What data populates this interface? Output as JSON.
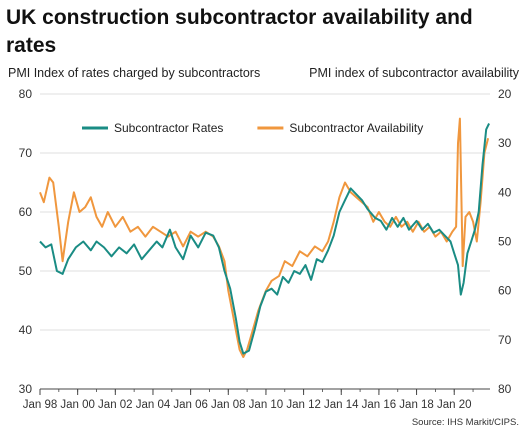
{
  "chart_data": {
    "type": "line",
    "title": "UK construction subcontractor availability and rates",
    "ylabel": "PMI Index of rates charged by subcontractors",
    "ylabel_right": "PMI index of subcontractor availability",
    "source": "Source: IHS Markit/CIPS.",
    "ylim": [
      30,
      80
    ],
    "yticks": [
      30,
      40,
      50,
      60,
      70,
      80
    ],
    "y2lim_inverted": [
      20,
      80
    ],
    "y2ticks": [
      20,
      30,
      40,
      50,
      60,
      70,
      80
    ],
    "xlim": [
      1998.0,
      2021.9
    ],
    "xticks": [
      {
        "x": 1998,
        "label": "Jan 98"
      },
      {
        "x": 2000,
        "label": "Jan 00"
      },
      {
        "x": 2002,
        "label": "Jan 02"
      },
      {
        "x": 2004,
        "label": "Jan 04"
      },
      {
        "x": 2006,
        "label": "Jan 06"
      },
      {
        "x": 2008,
        "label": "Jan 08"
      },
      {
        "x": 2010,
        "label": "Jan 10"
      },
      {
        "x": 2012,
        "label": "Jan 12"
      },
      {
        "x": 2014,
        "label": "Jan 14"
      },
      {
        "x": 2016,
        "label": "Jan 16"
      },
      {
        "x": 2018,
        "label": "Jan 18"
      },
      {
        "x": 2020,
        "label": "Jan 20"
      }
    ],
    "grid": "horizontal",
    "legend_position": "top",
    "series": [
      {
        "name": "Subcontractor Rates",
        "axis": "left",
        "color": "#1a8c84",
        "points": [
          [
            1998.0,
            55
          ],
          [
            1998.3,
            54
          ],
          [
            1998.6,
            54.5
          ],
          [
            1998.9,
            50
          ],
          [
            1999.2,
            49.5
          ],
          [
            1999.5,
            52
          ],
          [
            1999.9,
            54
          ],
          [
            2000.3,
            55
          ],
          [
            2000.7,
            53.5
          ],
          [
            2001.0,
            55
          ],
          [
            2001.4,
            54
          ],
          [
            2001.8,
            52.5
          ],
          [
            2002.2,
            54
          ],
          [
            2002.6,
            53
          ],
          [
            2003.0,
            54.5
          ],
          [
            2003.4,
            52
          ],
          [
            2003.8,
            53.5
          ],
          [
            2004.2,
            55
          ],
          [
            2004.5,
            54
          ],
          [
            2004.9,
            57
          ],
          [
            2005.2,
            54
          ],
          [
            2005.6,
            52
          ],
          [
            2006.0,
            56
          ],
          [
            2006.4,
            54
          ],
          [
            2006.8,
            56.5
          ],
          [
            2007.2,
            56
          ],
          [
            2007.5,
            54
          ],
          [
            2007.8,
            50
          ],
          [
            2008.1,
            47
          ],
          [
            2008.4,
            42
          ],
          [
            2008.6,
            38
          ],
          [
            2008.8,
            36
          ],
          [
            2009.1,
            36.5
          ],
          [
            2009.4,
            40
          ],
          [
            2009.7,
            44
          ],
          [
            2010.0,
            46.5
          ],
          [
            2010.3,
            47
          ],
          [
            2010.6,
            46
          ],
          [
            2010.9,
            49
          ],
          [
            2011.2,
            48
          ],
          [
            2011.5,
            50
          ],
          [
            2011.8,
            49.5
          ],
          [
            2012.1,
            51
          ],
          [
            2012.4,
            48.5
          ],
          [
            2012.7,
            52
          ],
          [
            2013.0,
            51.5
          ],
          [
            2013.3,
            53.5
          ],
          [
            2013.6,
            56
          ],
          [
            2013.9,
            60
          ],
          [
            2014.2,
            62
          ],
          [
            2014.5,
            64
          ],
          [
            2014.8,
            63
          ],
          [
            2015.1,
            62
          ],
          [
            2015.4,
            60.5
          ],
          [
            2015.8,
            59
          ],
          [
            2016.1,
            58.5
          ],
          [
            2016.4,
            57
          ],
          [
            2016.7,
            59
          ],
          [
            2017.0,
            57.5
          ],
          [
            2017.3,
            59
          ],
          [
            2017.6,
            57
          ],
          [
            2018.0,
            58.5
          ],
          [
            2018.3,
            57
          ],
          [
            2018.6,
            58
          ],
          [
            2018.9,
            56.5
          ],
          [
            2019.2,
            57
          ],
          [
            2019.5,
            56
          ],
          [
            2019.8,
            55
          ],
          [
            2020.0,
            53
          ],
          [
            2020.2,
            51
          ],
          [
            2020.35,
            46
          ],
          [
            2020.5,
            48
          ],
          [
            2020.7,
            53
          ],
          [
            2020.9,
            55
          ],
          [
            2021.1,
            57
          ],
          [
            2021.3,
            60
          ],
          [
            2021.5,
            68
          ],
          [
            2021.7,
            74
          ],
          [
            2021.85,
            75
          ]
        ]
      },
      {
        "name": "Subcontractor Availability",
        "axis": "right",
        "color": "#f0973e",
        "points": [
          [
            1998.0,
            40
          ],
          [
            1998.2,
            42
          ],
          [
            1998.5,
            37
          ],
          [
            1998.7,
            38
          ],
          [
            1999.0,
            47
          ],
          [
            1999.2,
            54
          ],
          [
            1999.5,
            46
          ],
          [
            1999.8,
            40
          ],
          [
            2000.1,
            44
          ],
          [
            2000.4,
            43
          ],
          [
            2000.7,
            41
          ],
          [
            2001.0,
            45
          ],
          [
            2001.3,
            47
          ],
          [
            2001.6,
            44
          ],
          [
            2002.0,
            47
          ],
          [
            2002.4,
            45
          ],
          [
            2002.8,
            48
          ],
          [
            2003.2,
            47
          ],
          [
            2003.6,
            49
          ],
          [
            2004.0,
            47
          ],
          [
            2004.4,
            48
          ],
          [
            2004.8,
            49
          ],
          [
            2005.2,
            48
          ],
          [
            2005.6,
            51
          ],
          [
            2006.0,
            48
          ],
          [
            2006.4,
            49
          ],
          [
            2006.8,
            48
          ],
          [
            2007.2,
            49
          ],
          [
            2007.5,
            51
          ],
          [
            2007.8,
            54
          ],
          [
            2008.0,
            60
          ],
          [
            2008.2,
            64
          ],
          [
            2008.4,
            68
          ],
          [
            2008.6,
            72
          ],
          [
            2008.8,
            73.5
          ],
          [
            2009.0,
            72
          ],
          [
            2009.3,
            68
          ],
          [
            2009.6,
            64
          ],
          [
            2010.0,
            60
          ],
          [
            2010.3,
            58
          ],
          [
            2010.7,
            57
          ],
          [
            2011.0,
            54
          ],
          [
            2011.4,
            55
          ],
          [
            2011.8,
            52
          ],
          [
            2012.2,
            53
          ],
          [
            2012.6,
            51
          ],
          [
            2013.0,
            52
          ],
          [
            2013.3,
            50
          ],
          [
            2013.6,
            46
          ],
          [
            2013.9,
            41
          ],
          [
            2014.2,
            38
          ],
          [
            2014.5,
            40
          ],
          [
            2014.8,
            41
          ],
          [
            2015.1,
            42
          ],
          [
            2015.4,
            43
          ],
          [
            2015.7,
            46
          ],
          [
            2016.0,
            44
          ],
          [
            2016.3,
            46
          ],
          [
            2016.6,
            47
          ],
          [
            2016.9,
            45
          ],
          [
            2017.2,
            47
          ],
          [
            2017.5,
            46
          ],
          [
            2017.8,
            48
          ],
          [
            2018.1,
            46
          ],
          [
            2018.4,
            48
          ],
          [
            2018.7,
            47
          ],
          [
            2019.0,
            49
          ],
          [
            2019.3,
            48
          ],
          [
            2019.6,
            50
          ],
          [
            2019.9,
            48
          ],
          [
            2020.1,
            47
          ],
          [
            2020.2,
            30
          ],
          [
            2020.3,
            25
          ],
          [
            2020.45,
            55
          ],
          [
            2020.6,
            45
          ],
          [
            2020.8,
            44
          ],
          [
            2021.0,
            46
          ],
          [
            2021.2,
            50
          ],
          [
            2021.4,
            42
          ],
          [
            2021.6,
            32
          ],
          [
            2021.8,
            29
          ]
        ]
      }
    ]
  }
}
